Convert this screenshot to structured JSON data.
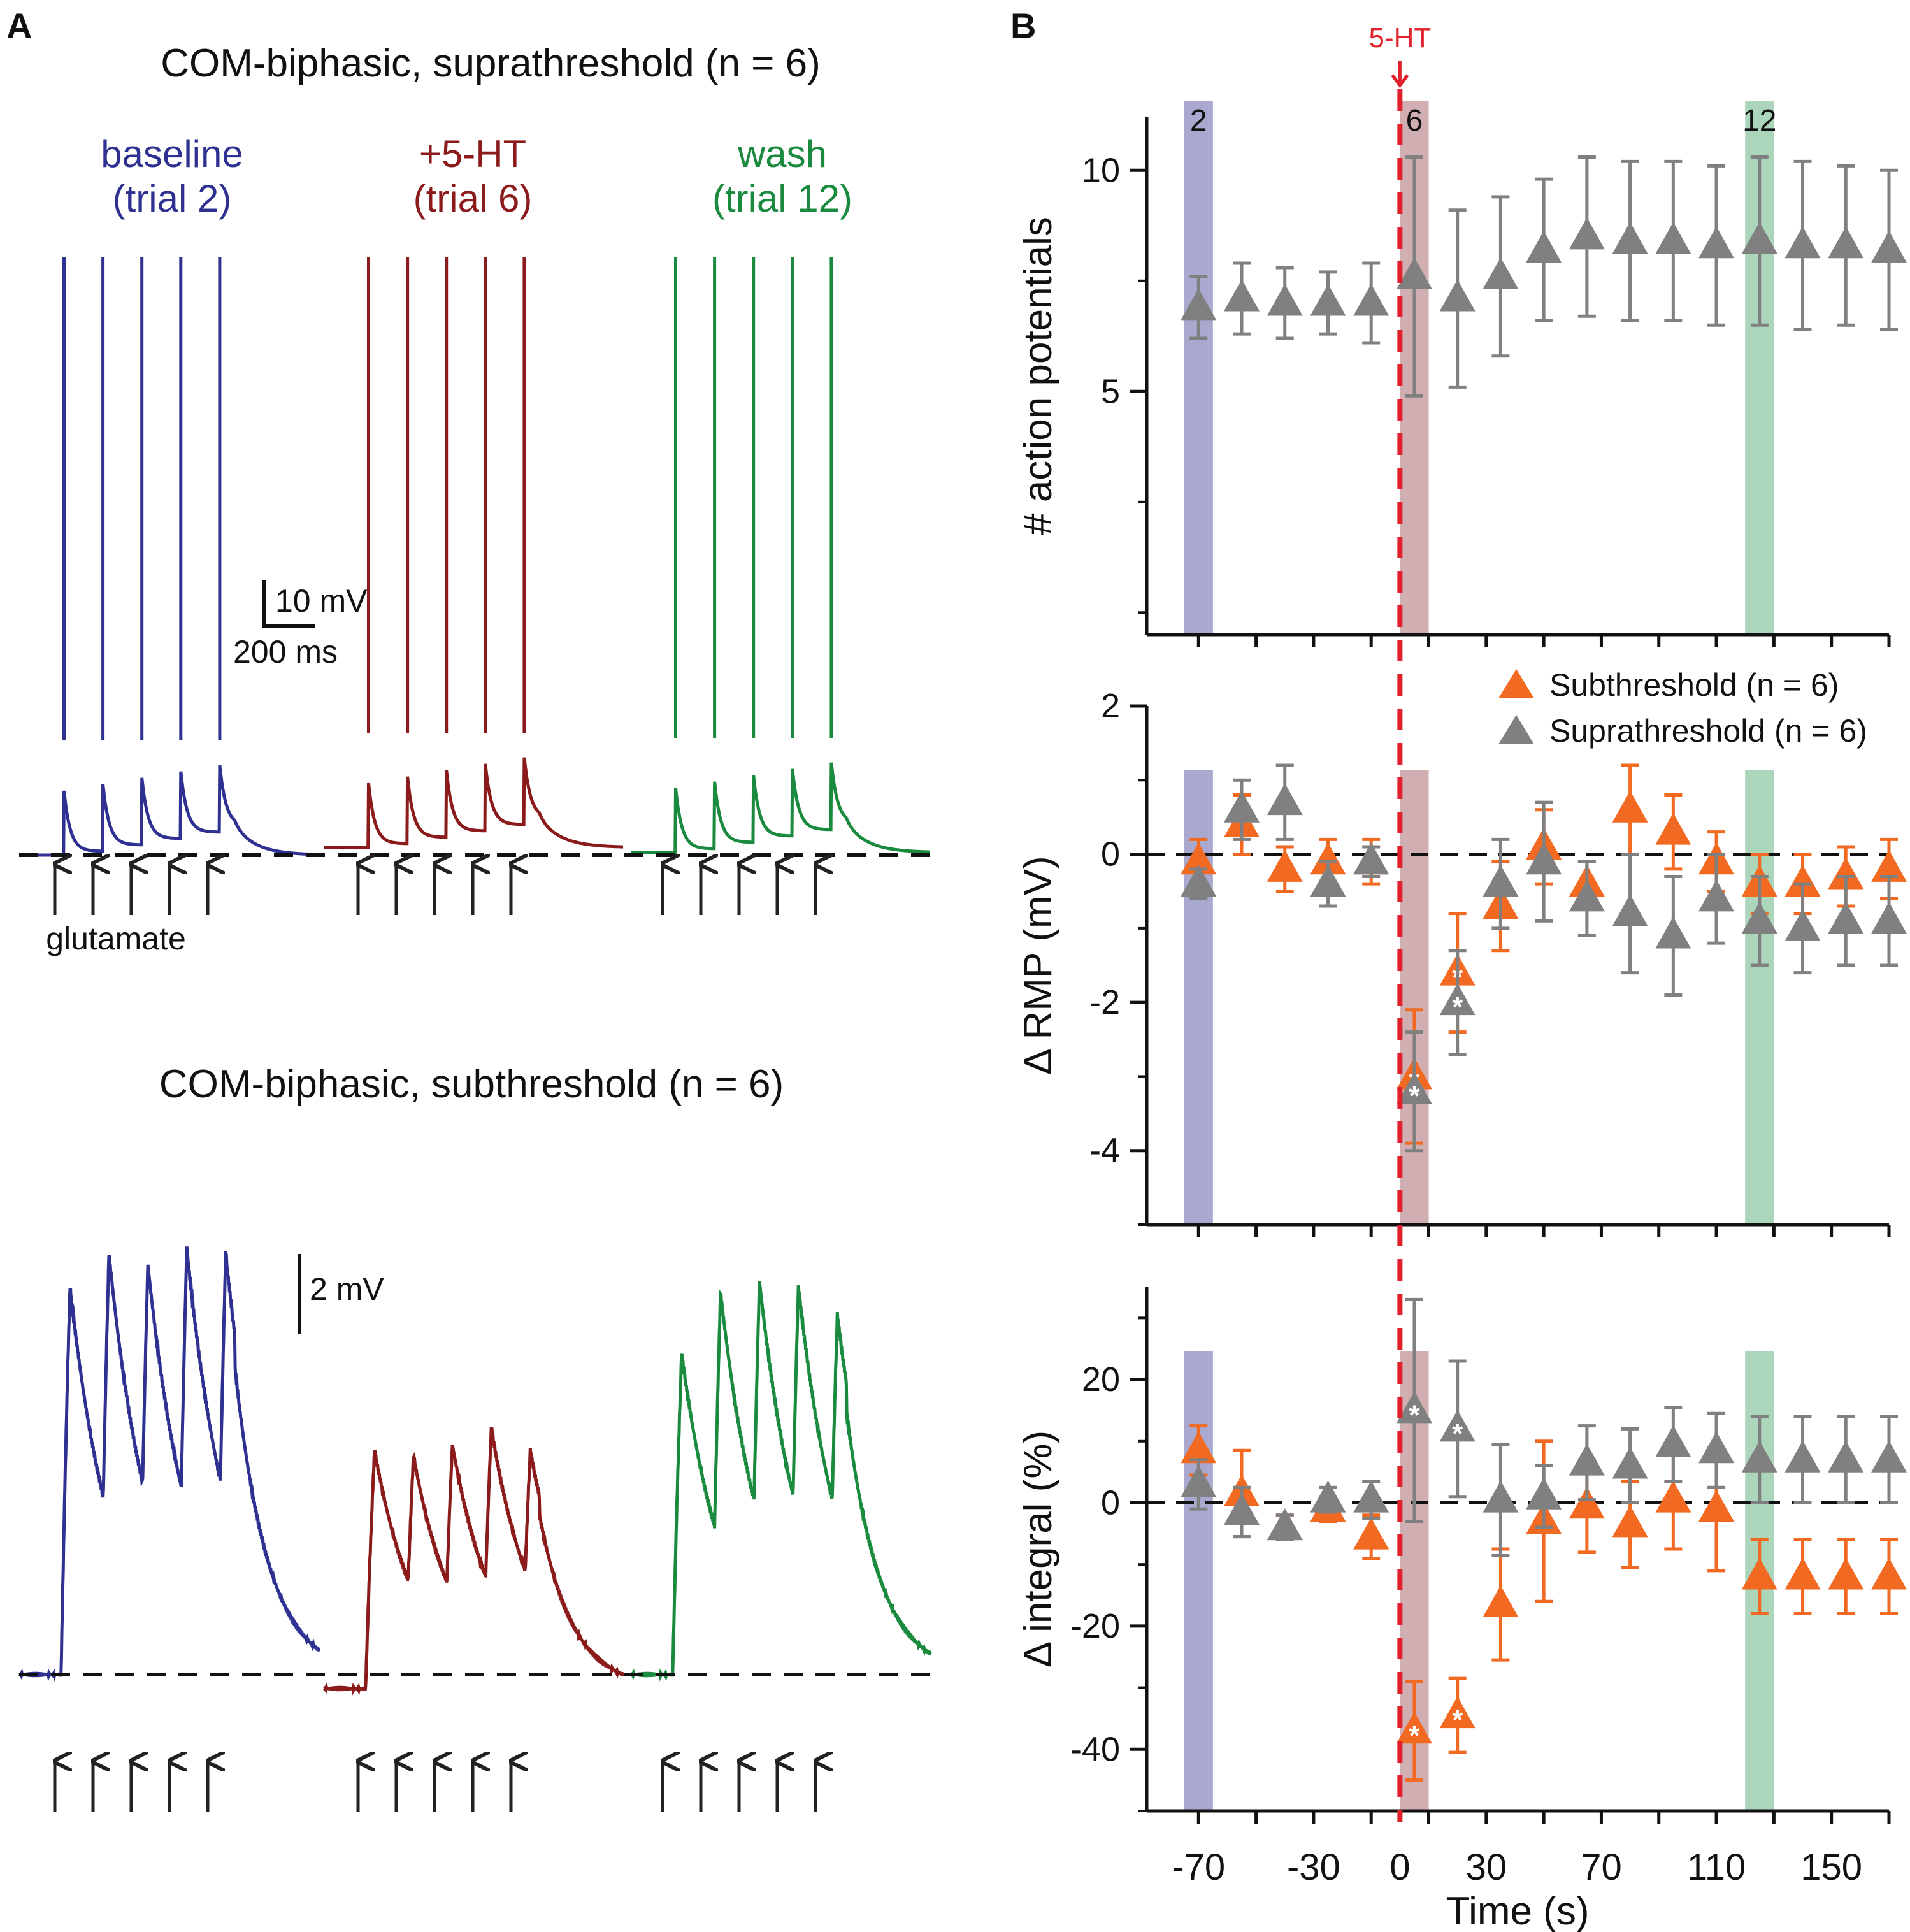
{
  "panels": {
    "a_letter": "A",
    "b_letter": "B"
  },
  "panel_a": {
    "supra": {
      "title": "COM-biphasic, suprathreshold (n = 6)",
      "conditions": [
        {
          "label1": "baseline",
          "label2": "(trial 2)",
          "color": "#2e3192"
        },
        {
          "label1": "+5-HT",
          "label2": "(trial 6)",
          "color": "#8b1a1a"
        },
        {
          "label1": "wash",
          "label2": "(trial 12)",
          "color": "#1a8a3e"
        }
      ],
      "scale_v": "10 mV",
      "scale_t": "200 ms",
      "stim_label": "glutamate"
    },
    "sub": {
      "title": "COM-biphasic, subthreshold (n = 6)",
      "scale_v": "2 mV"
    }
  },
  "chart_data": [
    {
      "type": "scatter",
      "title": "",
      "ylabel": "# action potentials",
      "xlim": [
        -88,
        170
      ],
      "ylim": [
        -0.5,
        11.2
      ],
      "yticks": [
        5,
        10
      ],
      "shaded_trials": [
        {
          "label": "2",
          "x_from": -75,
          "x_to": -65,
          "color": "#9a9ac8"
        },
        {
          "label": "6",
          "x_from": 0,
          "x_to": 10,
          "color": "#c9a0a4"
        },
        {
          "label": "12",
          "x_from": 120,
          "x_to": 130,
          "color": "#9ccfb0"
        }
      ],
      "drug_marker": {
        "label": "5-HT",
        "x": 0
      },
      "series": [
        {
          "name": "Suprathreshold (n = 6)",
          "color": "#808080",
          "x": [
            -70,
            -55,
            -40,
            -25,
            -10,
            5,
            20,
            35,
            50,
            65,
            80,
            95,
            110,
            125,
            140,
            155,
            170
          ],
          "y": [
            6.9,
            7.1,
            7.0,
            7.0,
            7.0,
            7.6,
            7.1,
            7.6,
            8.2,
            8.5,
            8.4,
            8.4,
            8.3,
            8.4,
            8.3,
            8.3,
            8.2
          ],
          "err": [
            0.7,
            0.8,
            0.8,
            0.7,
            0.9,
            2.7,
            2.0,
            1.8,
            1.6,
            1.8,
            1.8,
            1.8,
            1.8,
            1.9,
            1.9,
            1.8,
            1.8
          ]
        }
      ]
    },
    {
      "type": "scatter",
      "title": "",
      "ylabel": "Δ RMP (mV)",
      "xlim": [
        -88,
        170
      ],
      "ylim": [
        -5,
        2
      ],
      "yticks": [
        2,
        0,
        -2,
        -4
      ],
      "reference_line": 0,
      "series": [
        {
          "name": "Subthreshold (n = 6)",
          "color": "#f26a21",
          "x": [
            -70,
            -55,
            -40,
            -25,
            -10,
            5,
            20,
            35,
            50,
            65,
            80,
            95,
            110,
            125,
            140,
            155,
            170
          ],
          "y": [
            -0.1,
            0.4,
            -0.2,
            -0.1,
            -0.1,
            -3.0,
            -1.6,
            -0.7,
            0.1,
            -0.4,
            0.6,
            0.3,
            -0.1,
            -0.4,
            -0.4,
            -0.3,
            -0.2
          ],
          "err": [
            0.3,
            0.4,
            0.3,
            0.3,
            0.3,
            0.9,
            0.8,
            0.6,
            0.5,
            0.3,
            0.6,
            0.5,
            0.4,
            0.4,
            0.4,
            0.4,
            0.4
          ]
        },
        {
          "name": "Suprathreshold (n = 6)",
          "color": "#808080",
          "x": [
            -70,
            -55,
            -40,
            -25,
            -10,
            5,
            20,
            35,
            50,
            65,
            80,
            95,
            110,
            125,
            140,
            155,
            170
          ],
          "y": [
            -0.4,
            0.6,
            0.7,
            -0.4,
            -0.1,
            -3.2,
            -2.0,
            -0.4,
            -0.1,
            -0.6,
            -0.8,
            -1.1,
            -0.6,
            -0.9,
            -1.0,
            -0.9,
            -0.9
          ],
          "err": [
            0.2,
            0.4,
            0.5,
            0.3,
            0.2,
            0.8,
            0.7,
            0.6,
            0.8,
            0.5,
            0.8,
            0.8,
            0.6,
            0.6,
            0.6,
            0.6,
            0.6
          ]
        }
      ],
      "significance_marker": "*",
      "significant_points_x": [
        5,
        20
      ]
    },
    {
      "type": "scatter",
      "title": "",
      "ylabel": "Δ integral (%)",
      "xlabel": "Time (s)",
      "xlim": [
        -88,
        170
      ],
      "ylim": [
        -50,
        35
      ],
      "yticks": [
        20,
        0,
        -20,
        -40
      ],
      "xticks": [
        -70,
        -30,
        0,
        30,
        70,
        110,
        150
      ],
      "reference_line": 0,
      "series": [
        {
          "name": "Subthreshold (n = 6)",
          "color": "#f26a21",
          "x": [
            -70,
            -55,
            -40,
            -25,
            -10,
            5,
            20,
            35,
            50,
            65,
            80,
            95,
            110,
            125,
            140,
            155,
            170
          ],
          "y": [
            8.5,
            1.5,
            -4.0,
            -1.0,
            -5.5,
            -37.0,
            -34.5,
            -16.5,
            -3.0,
            -0.5,
            -3.5,
            0.5,
            -1.0,
            -12.0,
            -12.0,
            -12.0,
            -12.0
          ],
          "err": [
            4.0,
            7.0,
            2.0,
            2.0,
            3.5,
            8.0,
            6.0,
            9.0,
            13.0,
            7.5,
            7.0,
            8.0,
            10.0,
            6.0,
            6.0,
            6.0,
            6.0
          ]
        },
        {
          "name": "Suprathreshold (n = 6)",
          "color": "#808080",
          "x": [
            -70,
            -55,
            -40,
            -25,
            -10,
            5,
            20,
            35,
            50,
            65,
            80,
            95,
            110,
            125,
            140,
            155,
            170
          ],
          "y": [
            3.0,
            -1.5,
            -4.0,
            0.5,
            0.5,
            15.0,
            12.0,
            0.5,
            1.0,
            6.5,
            6.0,
            9.5,
            8.5,
            7.0,
            7.0,
            7.0,
            7.0
          ],
          "err": [
            4.0,
            4.0,
            2.0,
            2.0,
            3.0,
            18.0,
            11.0,
            9.0,
            5.0,
            6.0,
            6.0,
            6.0,
            6.0,
            7.0,
            7.0,
            7.0,
            7.0
          ]
        }
      ],
      "significance_marker": "*",
      "significant_points_x": [
        5,
        20
      ]
    }
  ]
}
